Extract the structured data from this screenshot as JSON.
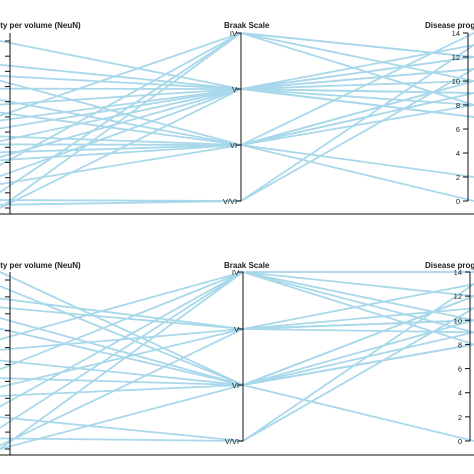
{
  "line_color": "#a8d8ea",
  "axis_color": "#111111",
  "chart_data": [
    {
      "type": "parallel-coordinates",
      "axes": [
        {
          "title": "ity per volume (NeuN)",
          "ticks": [
            "",
            "",
            "",
            "",
            "",
            "",
            "",
            "",
            "",
            "",
            "",
            ""
          ],
          "ylim": [
            0,
            11
          ]
        },
        {
          "title": "Braak Scale",
          "ticks": [
            "IV",
            "V",
            "VI",
            "V/VI"
          ]
        },
        {
          "title": "Disease prog",
          "ticks": [
            "0",
            "2",
            "4",
            "6",
            "8",
            "10",
            "12",
            "14"
          ],
          "ylim": [
            0,
            14
          ]
        }
      ],
      "lines": [
        [
          10.5,
          1,
          11
        ],
        [
          9.0,
          1,
          10
        ],
        [
          8.3,
          1,
          9
        ],
        [
          7.5,
          1,
          12
        ],
        [
          6.5,
          1,
          8
        ],
        [
          6.0,
          2,
          8
        ],
        [
          5.5,
          1,
          7
        ],
        [
          5.0,
          1,
          12
        ],
        [
          4.5,
          2,
          2
        ],
        [
          4.0,
          2,
          9
        ],
        [
          3.5,
          2,
          14
        ],
        [
          3.0,
          2,
          10
        ],
        [
          2.7,
          0,
          8
        ],
        [
          2.0,
          1,
          9
        ],
        [
          1.5,
          2,
          0
        ],
        [
          1.0,
          0,
          10
        ],
        [
          0.5,
          3,
          13
        ],
        [
          0.2,
          3,
          11
        ],
        [
          0,
          0,
          12
        ],
        [
          0,
          1,
          7
        ],
        [
          6.8,
          2,
          9
        ],
        [
          5.8,
          0,
          12
        ],
        [
          4.2,
          1,
          11
        ],
        [
          3.2,
          1,
          13
        ],
        [
          8.0,
          2,
          10
        ]
      ]
    },
    {
      "type": "parallel-coordinates",
      "axes": [
        {
          "title": "ity per volume (NeuN)",
          "ticks": [
            "",
            "",
            "",
            "",
            "",
            "",
            "",
            "",
            "",
            "",
            ""
          ],
          "ylim": [
            0,
            10
          ]
        },
        {
          "title": "Braak Scale",
          "ticks": [
            "IV",
            "V",
            "VI",
            "V/VI"
          ]
        },
        {
          "title": "Disease prog",
          "ticks": [
            "0",
            "2",
            "4",
            "6",
            "8",
            "10",
            "12",
            "14"
          ],
          "ylim": [
            0,
            14
          ]
        }
      ],
      "lines": [
        [
          10.0,
          2,
          10
        ],
        [
          9.2,
          2,
          8
        ],
        [
          8.5,
          1,
          9
        ],
        [
          8.0,
          1,
          11
        ],
        [
          7.4,
          2,
          12
        ],
        [
          6.8,
          2,
          8
        ],
        [
          6.2,
          0,
          10
        ],
        [
          5.6,
          1,
          13
        ],
        [
          5.0,
          2,
          0
        ],
        [
          4.5,
          0,
          14
        ],
        [
          4.0,
          2,
          9
        ],
        [
          3.5,
          1,
          10
        ],
        [
          3.0,
          2,
          12
        ],
        [
          2.4,
          0,
          9
        ],
        [
          1.8,
          3,
          11
        ],
        [
          1.2,
          0,
          8
        ],
        [
          0.6,
          3,
          13
        ],
        [
          0.2,
          1,
          10
        ],
        [
          0,
          0,
          12
        ],
        [
          0,
          2,
          8
        ]
      ]
    }
  ]
}
